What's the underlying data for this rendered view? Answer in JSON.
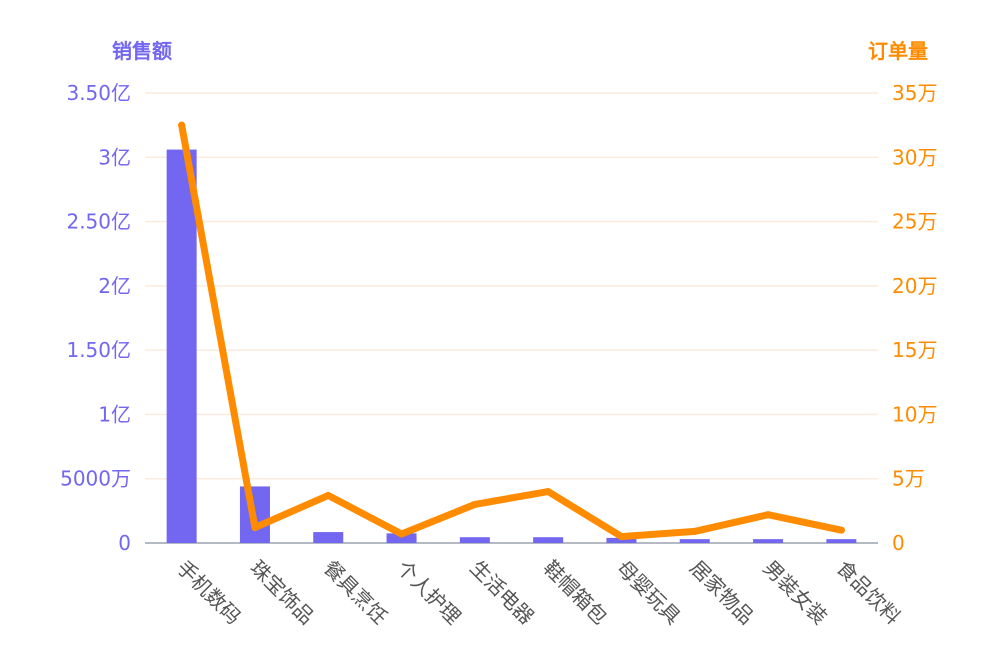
{
  "colors": {
    "sales": "#7366F0",
    "orders": "#FF8C00",
    "grid": "#FCEBDD",
    "baseline": "#9CA3AF",
    "category_text": "#555555"
  },
  "chart_data": {
    "type": "bar",
    "categories": [
      "手机数码",
      "珠宝饰品",
      "餐具烹饪",
      "个人护理",
      "生活电器",
      "鞋帽箱包",
      "母婴玩具",
      "居家物品",
      "男装女装",
      "食品饮料"
    ],
    "series": [
      {
        "name": "销售额",
        "type": "bar",
        "axis": "left",
        "values": [
          306000000,
          44000000,
          8500000,
          7500000,
          4500000,
          4500000,
          4000000,
          3000000,
          3000000,
          3000000
        ]
      },
      {
        "name": "订单量",
        "type": "line",
        "axis": "right",
        "values": [
          325000,
          12000,
          37000,
          7000,
          30000,
          40000,
          5000,
          9000,
          22000,
          10000
        ]
      }
    ],
    "left_axis": {
      "title": "销售额",
      "range": [
        0,
        350000000
      ],
      "ticks": [
        0,
        50000000,
        100000000,
        150000000,
        200000000,
        250000000,
        300000000,
        350000000
      ],
      "tick_labels": [
        "0",
        "5000万",
        "1亿",
        "1.50亿",
        "2亿",
        "2.50亿",
        "3亿",
        "3.50亿"
      ]
    },
    "right_axis": {
      "title": "订单量",
      "range": [
        0,
        350000
      ],
      "ticks": [
        0,
        50000,
        100000,
        150000,
        200000,
        250000,
        300000,
        350000
      ],
      "tick_labels": [
        "0",
        "5万",
        "10万",
        "15万",
        "20万",
        "25万",
        "30万",
        "35万"
      ]
    },
    "grid": true,
    "legend": "none"
  }
}
